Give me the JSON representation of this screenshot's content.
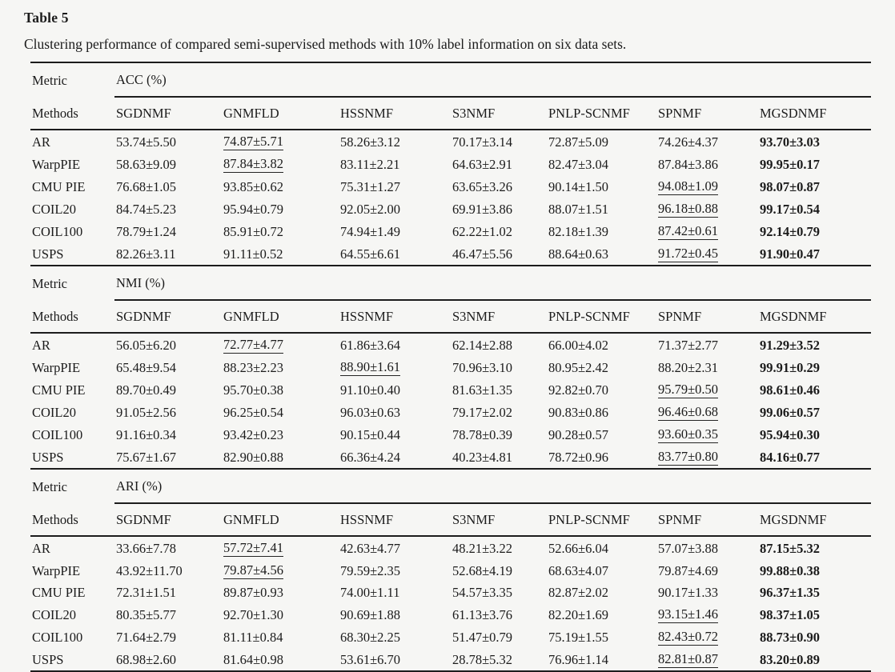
{
  "title": "Table 5",
  "caption": "Clustering performance of compared semi-supervised methods with 10% label information on six data sets.",
  "labels": {
    "metric": "Metric",
    "methods": "Methods"
  },
  "columns": [
    "SGDNMF",
    "GNMFLD",
    "HSSNMF",
    "S3NMF",
    "PNLP-SCNMF",
    "SPNMF",
    "MGSDNMF"
  ],
  "sections": [
    {
      "metric": "ACC (%)",
      "rows": [
        {
          "label": "AR",
          "values": [
            "53.74±5.50",
            "74.87±5.71",
            "58.26±3.12",
            "70.17±3.14",
            "72.87±5.09",
            "74.26±4.37",
            "93.70±3.03"
          ],
          "marks": [
            "",
            "u",
            "",
            "",
            "",
            "",
            "b"
          ]
        },
        {
          "label": "WarpPIE",
          "values": [
            "58.63±9.09",
            "87.84±3.82",
            "83.11±2.21",
            "64.63±2.91",
            "82.47±3.04",
            "87.84±3.86",
            "99.95±0.17"
          ],
          "marks": [
            "",
            "u",
            "",
            "",
            "",
            "",
            "b"
          ]
        },
        {
          "label": "CMU PIE",
          "values": [
            "76.68±1.05",
            "93.85±0.62",
            "75.31±1.27",
            "63.65±3.26",
            "90.14±1.50",
            "94.08±1.09",
            "98.07±0.87"
          ],
          "marks": [
            "",
            "",
            "",
            "",
            "",
            "u",
            "b"
          ]
        },
        {
          "label": "COIL20",
          "values": [
            "84.74±5.23",
            "95.94±0.79",
            "92.05±2.00",
            "69.91±3.86",
            "88.07±1.51",
            "96.18±0.88",
            "99.17±0.54"
          ],
          "marks": [
            "",
            "",
            "",
            "",
            "",
            "u",
            "b"
          ]
        },
        {
          "label": "COIL100",
          "values": [
            "78.79±1.24",
            "85.91±0.72",
            "74.94±1.49",
            "62.22±1.02",
            "82.18±1.39",
            "87.42±0.61",
            "92.14±0.79"
          ],
          "marks": [
            "",
            "",
            "",
            "",
            "",
            "u",
            "b"
          ]
        },
        {
          "label": "USPS",
          "values": [
            "82.26±3.11",
            "91.11±0.52",
            "64.55±6.61",
            "46.47±5.56",
            "88.64±0.63",
            "91.72±0.45",
            "91.90±0.47"
          ],
          "marks": [
            "",
            "",
            "",
            "",
            "",
            "u",
            "b"
          ]
        }
      ]
    },
    {
      "metric": "NMI (%)",
      "rows": [
        {
          "label": "AR",
          "values": [
            "56.05±6.20",
            "72.77±4.77",
            "61.86±3.64",
            "62.14±2.88",
            "66.00±4.02",
            "71.37±2.77",
            "91.29±3.52"
          ],
          "marks": [
            "",
            "u",
            "",
            "",
            "",
            "",
            "b"
          ]
        },
        {
          "label": "WarpPIE",
          "values": [
            "65.48±9.54",
            "88.23±2.23",
            "88.90±1.61",
            "70.96±3.10",
            "80.95±2.42",
            "88.20±2.31",
            "99.91±0.29"
          ],
          "marks": [
            "",
            "",
            "u",
            "",
            "",
            "",
            "b"
          ]
        },
        {
          "label": "CMU PIE",
          "values": [
            "89.70±0.49",
            "95.70±0.38",
            "91.10±0.40",
            "81.63±1.35",
            "92.82±0.70",
            "95.79±0.50",
            "98.61±0.46"
          ],
          "marks": [
            "",
            "",
            "",
            "",
            "",
            "u",
            "b"
          ]
        },
        {
          "label": "COIL20",
          "values": [
            "91.05±2.56",
            "96.25±0.54",
            "96.03±0.63",
            "79.17±2.02",
            "90.83±0.86",
            "96.46±0.68",
            "99.06±0.57"
          ],
          "marks": [
            "",
            "",
            "",
            "",
            "",
            "u",
            "b"
          ]
        },
        {
          "label": "COIL100",
          "values": [
            "91.16±0.34",
            "93.42±0.23",
            "90.15±0.44",
            "78.78±0.39",
            "90.28±0.57",
            "93.60±0.35",
            "95.94±0.30"
          ],
          "marks": [
            "",
            "",
            "",
            "",
            "",
            "u",
            "b"
          ]
        },
        {
          "label": "USPS",
          "values": [
            "75.67±1.67",
            "82.90±0.88",
            "66.36±4.24",
            "40.23±4.81",
            "78.72±0.96",
            "83.77±0.80",
            "84.16±0.77"
          ],
          "marks": [
            "",
            "",
            "",
            "",
            "",
            "u",
            "b"
          ]
        }
      ]
    },
    {
      "metric": "ARI (%)",
      "rows": [
        {
          "label": "AR",
          "values": [
            "33.66±7.78",
            "57.72±7.41",
            "42.63±4.77",
            "48.21±3.22",
            "52.66±6.04",
            "57.07±3.88",
            "87.15±5.32"
          ],
          "marks": [
            "",
            "u",
            "",
            "",
            "",
            "",
            "b"
          ]
        },
        {
          "label": "WarpPIE",
          "values": [
            "43.92±11.70",
            "79.87±4.56",
            "79.59±2.35",
            "52.68±4.19",
            "68.63±4.07",
            "79.87±4.69",
            "99.88±0.38"
          ],
          "marks": [
            "",
            "u",
            "",
            "",
            "",
            "",
            "b"
          ]
        },
        {
          "label": "CMU PIE",
          "values": [
            "72.31±1.51",
            "89.87±0.93",
            "74.00±1.11",
            "54.57±3.35",
            "82.87±2.02",
            "90.17±1.33",
            "96.37±1.35"
          ],
          "marks": [
            "",
            "",
            "",
            "",
            "",
            "",
            "b"
          ]
        },
        {
          "label": "COIL20",
          "values": [
            "80.35±5.77",
            "92.70±1.30",
            "90.69±1.88",
            "61.13±3.76",
            "82.20±1.69",
            "93.15±1.46",
            "98.37±1.05"
          ],
          "marks": [
            "",
            "",
            "",
            "",
            "",
            "u",
            "b"
          ]
        },
        {
          "label": "COIL100",
          "values": [
            "71.64±2.79",
            "81.11±0.84",
            "68.30±2.25",
            "51.47±0.79",
            "75.19±1.55",
            "82.43±0.72",
            "88.73±0.90"
          ],
          "marks": [
            "",
            "",
            "",
            "",
            "",
            "u",
            "b"
          ]
        },
        {
          "label": "USPS",
          "values": [
            "68.98±2.60",
            "81.64±0.98",
            "53.61±6.70",
            "28.78±5.32",
            "76.96±1.14",
            "82.81±0.87",
            "83.20±0.89"
          ],
          "marks": [
            "",
            "",
            "",
            "",
            "",
            "u",
            "b"
          ]
        }
      ]
    }
  ]
}
